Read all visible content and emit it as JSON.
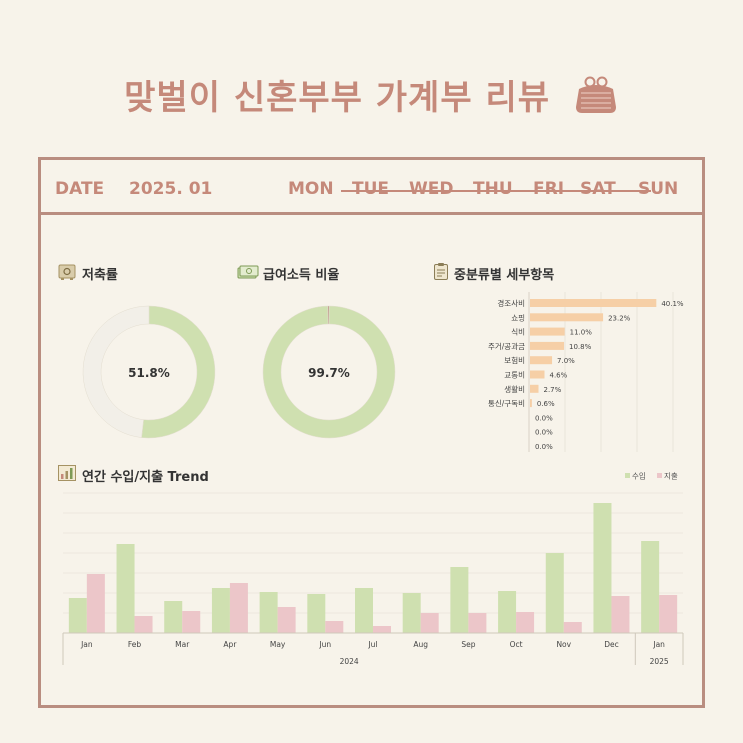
{
  "page": {
    "title": "맞벌이 신혼부부 가계부 리뷰",
    "icon": "purse-icon"
  },
  "header": {
    "date_label": "DATE",
    "date_value": "2025. 01",
    "days": [
      "MON",
      "TUE",
      "WED",
      "THU",
      "FRI",
      "SAT",
      "SUN"
    ]
  },
  "colors": {
    "accent": "#c5897a",
    "frame": "#b98d80",
    "income": "#cfe0b0",
    "expense": "#ecc6c9",
    "bar_orange": "#f6cfa6",
    "donut_track": "#f2efe8"
  },
  "sections": {
    "savings_rate": "저축률",
    "salary_ratio": "급여소득 비율",
    "category": "중분류별 세부항목",
    "trend": "연간 수입/지출 Trend"
  },
  "chart_data": [
    {
      "type": "pie",
      "name": "savings-rate",
      "label": "51.8%",
      "values": [
        51.8,
        48.2
      ]
    },
    {
      "type": "pie",
      "name": "salary-ratio",
      "label": "99.7%",
      "values": [
        99.7,
        0.3
      ]
    },
    {
      "type": "bar",
      "orientation": "horizontal",
      "categories": [
        "경조사비",
        "쇼핑",
        "식비",
        "주거/공과금",
        "보험비",
        "교통비",
        "생활비",
        "통신/구독비",
        "",
        "",
        ""
      ],
      "values": [
        40.1,
        23.2,
        11.0,
        10.8,
        7.0,
        4.6,
        2.7,
        0.6,
        0.0,
        0.0,
        0.0
      ],
      "labels": [
        "40.1%",
        "23.2%",
        "11.0%",
        "10.8%",
        "7.0%",
        "4.6%",
        "2.7%",
        "0.6%",
        "0.0%",
        "0.0%",
        "0.0%"
      ],
      "xlim": [
        0,
        50
      ]
    },
    {
      "type": "bar",
      "categories": [
        "Jan",
        "Feb",
        "Mar",
        "Apr",
        "May",
        "Jun",
        "Jul",
        "Aug",
        "Sep",
        "Oct",
        "Nov",
        "Dec",
        "Jan"
      ],
      "groups": [
        {
          "label": "2024",
          "count": 12
        },
        {
          "label": "2025",
          "count": 1
        }
      ],
      "series": [
        {
          "name": "수입",
          "values": [
            35,
            89,
            32,
            45,
            41,
            39,
            45,
            40,
            66,
            42,
            80,
            130,
            92
          ]
        },
        {
          "name": "지출",
          "values": [
            59,
            17,
            22,
            50,
            26,
            12,
            7,
            20,
            20,
            21,
            11,
            37,
            38
          ]
        }
      ],
      "ylim": [
        0,
        140
      ],
      "legend": "top-right"
    }
  ]
}
